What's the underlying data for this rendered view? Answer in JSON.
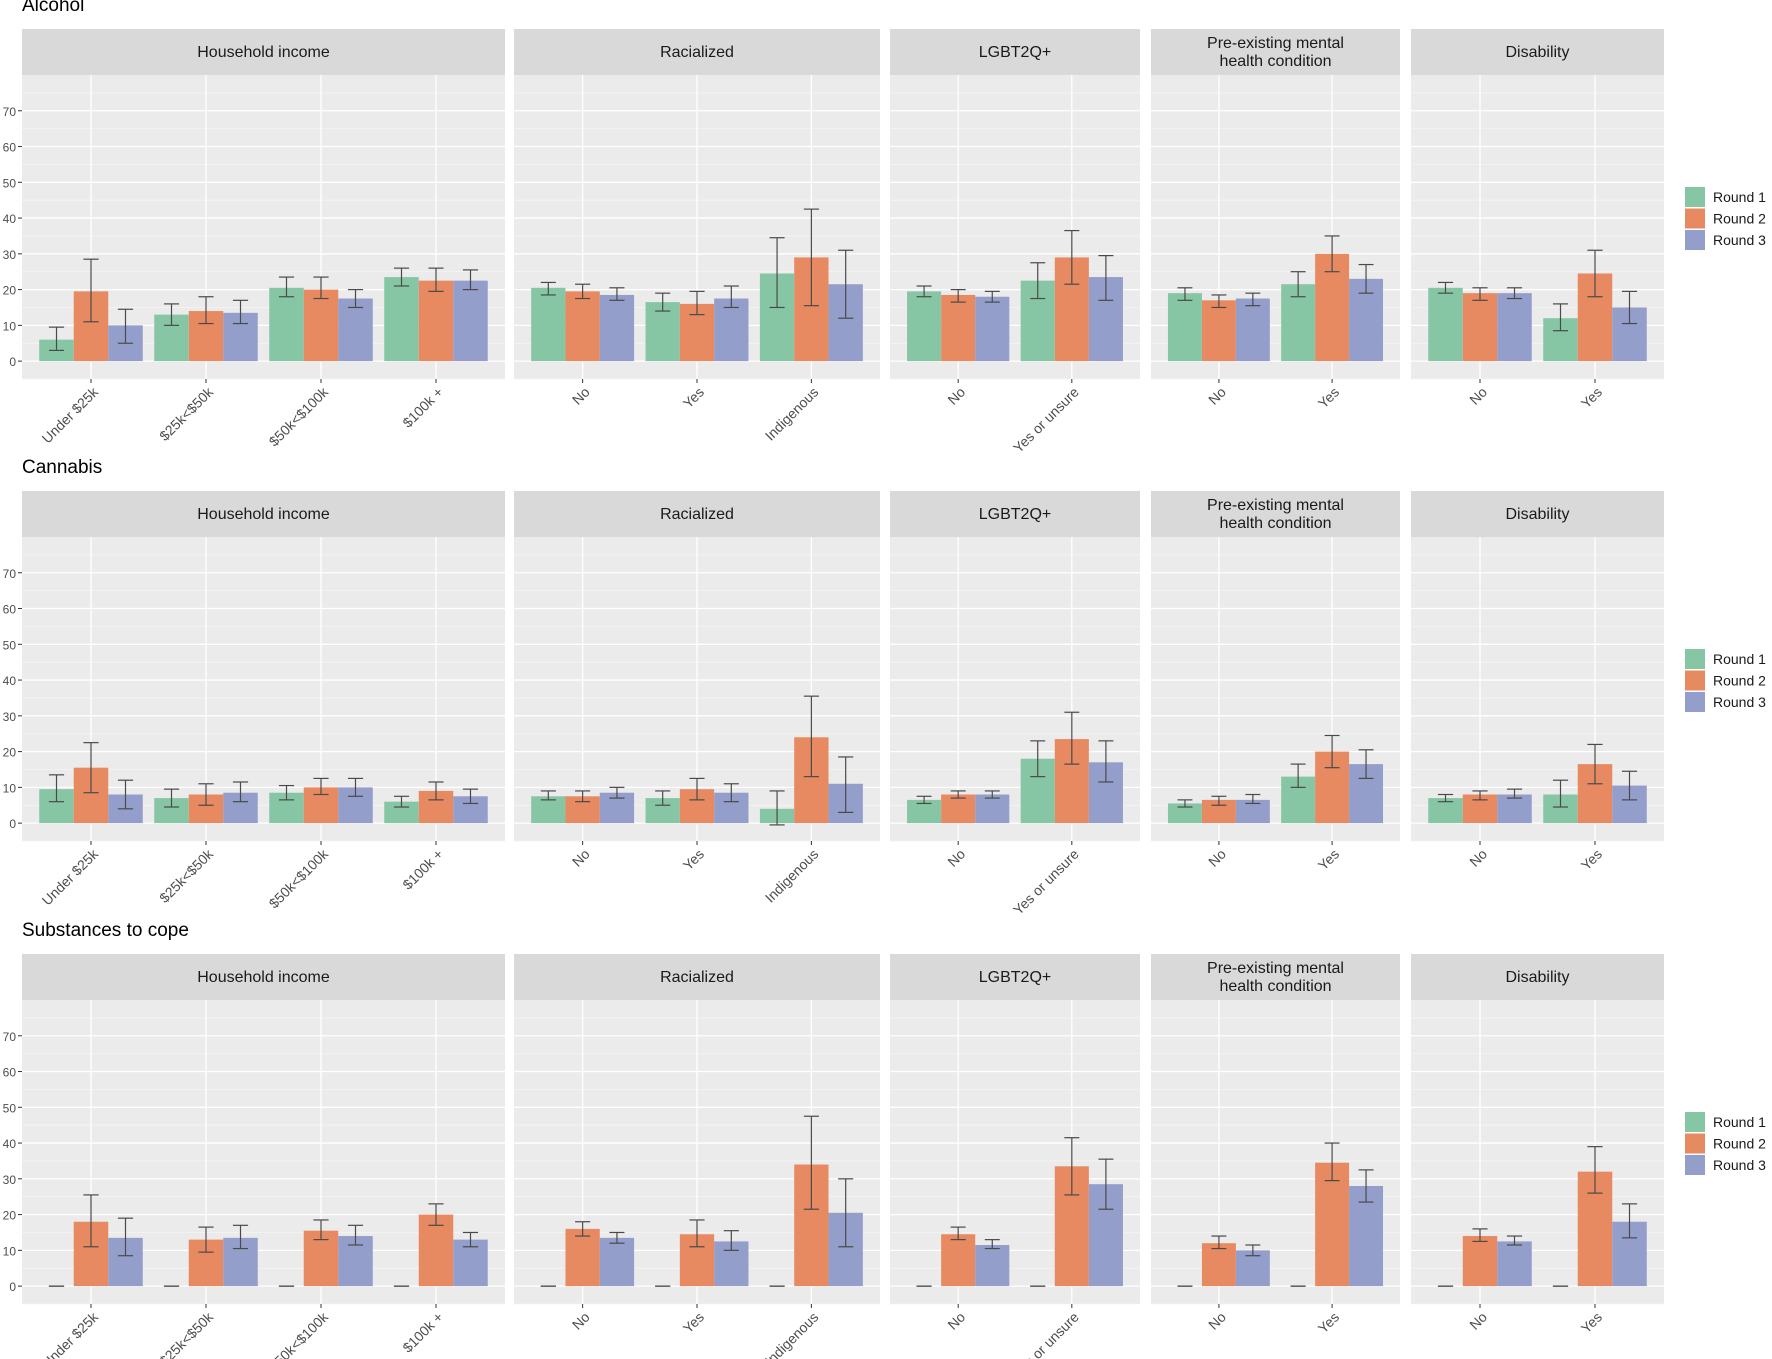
{
  "chart_data": {
    "type": "bar",
    "ylim": [
      -5,
      80
    ],
    "y_ticks": [
      0,
      10,
      20,
      30,
      40,
      50,
      60,
      70
    ],
    "grid": true,
    "legend_position": "right",
    "series": [
      {
        "name": "Round 1",
        "color": "#86C6A5"
      },
      {
        "name": "Round 2",
        "color": "#E78A61"
      },
      {
        "name": "Round 3",
        "color": "#939ECB"
      }
    ],
    "facets": [
      {
        "label": "Household income",
        "categories": [
          "Under $25k",
          "$25k<$50k",
          "$50k<$100k",
          "$100k +"
        ]
      },
      {
        "label": "Racialized",
        "categories": [
          "No",
          "Yes",
          "Indigenous"
        ]
      },
      {
        "label": "LGBT2Q+",
        "categories": [
          "No",
          "Yes or unsure"
        ]
      },
      {
        "label": "Pre-existing mental health condition",
        "label_lines": [
          "Pre-existing mental",
          "health condition"
        ],
        "categories": [
          "No",
          "Yes"
        ]
      },
      {
        "label": "Disability",
        "categories": [
          "No",
          "Yes"
        ]
      }
    ],
    "panels": [
      {
        "title": "Alcohol",
        "facets": [
          [
            [
              6,
              3,
              9.5
            ],
            [
              19.5,
              11,
              28.5
            ],
            [
              10,
              5,
              14.5
            ],
            [
              13,
              10,
              16
            ],
            [
              14,
              10.5,
              18
            ],
            [
              13.5,
              10.5,
              17
            ],
            [
              20.5,
              18,
              23.5
            ],
            [
              20,
              17.5,
              23.5
            ],
            [
              17.5,
              15,
              20
            ],
            [
              23.5,
              21,
              26
            ],
            [
              22.5,
              19.5,
              26
            ],
            [
              22.5,
              20,
              25.5
            ]
          ],
          [
            [
              20.5,
              18.5,
              22
            ],
            [
              19.5,
              17.5,
              21.5
            ],
            [
              18.5,
              17,
              20.5
            ],
            [
              16.5,
              14,
              19
            ],
            [
              16,
              13,
              19.5
            ],
            [
              17.5,
              15,
              21
            ],
            [
              24.5,
              15,
              34.5
            ],
            [
              29,
              15.5,
              42.5
            ],
            [
              21.5,
              12,
              31
            ]
          ],
          [
            [
              19.5,
              18,
              21
            ],
            [
              18.5,
              16.5,
              20
            ],
            [
              18,
              16.5,
              19.5
            ],
            [
              22.5,
              17.5,
              27.5
            ],
            [
              29,
              21.5,
              36.5
            ],
            [
              23.5,
              17,
              29.5
            ]
          ],
          [
            [
              19,
              17,
              20.5
            ],
            [
              17,
              15,
              18.5
            ],
            [
              17.5,
              15.5,
              19
            ],
            [
              21.5,
              18,
              25
            ],
            [
              30,
              25,
              35
            ],
            [
              23,
              19,
              27
            ]
          ],
          [
            [
              20.5,
              19,
              22
            ],
            [
              19,
              17,
              20.5
            ],
            [
              19,
              17.5,
              20.5
            ],
            [
              12,
              8.5,
              16
            ],
            [
              24.5,
              18,
              31
            ],
            [
              15,
              10.5,
              19.5
            ]
          ]
        ]
      },
      {
        "title": "Cannabis",
        "facets": [
          [
            [
              9.5,
              6,
              13.5
            ],
            [
              15.5,
              8.5,
              22.5
            ],
            [
              8,
              4,
              12
            ],
            [
              7,
              4.5,
              9.5
            ],
            [
              8,
              5,
              11
            ],
            [
              8.5,
              6,
              11.5
            ],
            [
              8.5,
              6.5,
              10.5
            ],
            [
              10,
              8,
              12.5
            ],
            [
              10,
              7.5,
              12.5
            ],
            [
              6,
              4.5,
              7.5
            ],
            [
              9,
              6.5,
              11.5
            ],
            [
              7.5,
              5.5,
              9.5
            ]
          ],
          [
            [
              7.5,
              6.5,
              9
            ],
            [
              7.5,
              6,
              9
            ],
            [
              8.5,
              7,
              10
            ],
            [
              7,
              5,
              9
            ],
            [
              9.5,
              6.5,
              12.5
            ],
            [
              8.5,
              6,
              11
            ],
            [
              4,
              -0.5,
              9
            ],
            [
              24,
              13,
              35.5
            ],
            [
              11,
              3,
              18.5
            ]
          ],
          [
            [
              6.5,
              5.5,
              7.5
            ],
            [
              8,
              7,
              9
            ],
            [
              8,
              7,
              9
            ],
            [
              18,
              13,
              23
            ],
            [
              23.5,
              16.5,
              31
            ],
            [
              17,
              11.5,
              23
            ]
          ],
          [
            [
              5.5,
              4.5,
              6.5
            ],
            [
              6.5,
              5,
              7.5
            ],
            [
              6.5,
              5.5,
              8
            ],
            [
              13,
              10,
              16.5
            ],
            [
              20,
              15.5,
              24.5
            ],
            [
              16.5,
              12.5,
              20.5
            ]
          ],
          [
            [
              7,
              6,
              8
            ],
            [
              8,
              6.5,
              9
            ],
            [
              8,
              7,
              9.5
            ],
            [
              8,
              4.5,
              12
            ],
            [
              16.5,
              11,
              22
            ],
            [
              10.5,
              6.5,
              14.5
            ]
          ]
        ]
      },
      {
        "title": "Substances to cope",
        "facets": [
          [
            [
              0,
              0,
              0
            ],
            [
              18,
              11,
              25.5
            ],
            [
              13.5,
              8.5,
              19
            ],
            [
              0,
              0,
              0
            ],
            [
              13,
              9.5,
              16.5
            ],
            [
              13.5,
              10.5,
              17
            ],
            [
              0,
              0,
              0
            ],
            [
              15.5,
              13,
              18.5
            ],
            [
              14,
              11.5,
              17
            ],
            [
              0,
              0,
              0
            ],
            [
              20,
              17,
              23
            ],
            [
              13,
              11,
              15
            ]
          ],
          [
            [
              0,
              0,
              0
            ],
            [
              16,
              14,
              18
            ],
            [
              13.5,
              12,
              15
            ],
            [
              0,
              0,
              0
            ],
            [
              14.5,
              11,
              18.5
            ],
            [
              12.5,
              10,
              15.5
            ],
            [
              0,
              0,
              0
            ],
            [
              34,
              21.5,
              47.5
            ],
            [
              20.5,
              11,
              30
            ]
          ],
          [
            [
              0,
              0,
              0
            ],
            [
              14.5,
              13,
              16.5
            ],
            [
              11.5,
              10.5,
              13
            ],
            [
              0,
              0,
              0
            ],
            [
              33.5,
              25.5,
              41.5
            ],
            [
              28.5,
              21.5,
              35.5
            ]
          ],
          [
            [
              0,
              0,
              0
            ],
            [
              12,
              10.5,
              14
            ],
            [
              10,
              8.5,
              11.5
            ],
            [
              0,
              0,
              0
            ],
            [
              34.5,
              29.5,
              40
            ],
            [
              28,
              23.5,
              32.5
            ]
          ],
          [
            [
              0,
              0,
              0
            ],
            [
              14,
              12.5,
              16
            ],
            [
              12.5,
              11.5,
              14
            ],
            [
              0,
              0,
              0
            ],
            [
              32,
              26,
              39
            ],
            [
              18,
              13.5,
              23
            ]
          ]
        ]
      }
    ]
  }
}
